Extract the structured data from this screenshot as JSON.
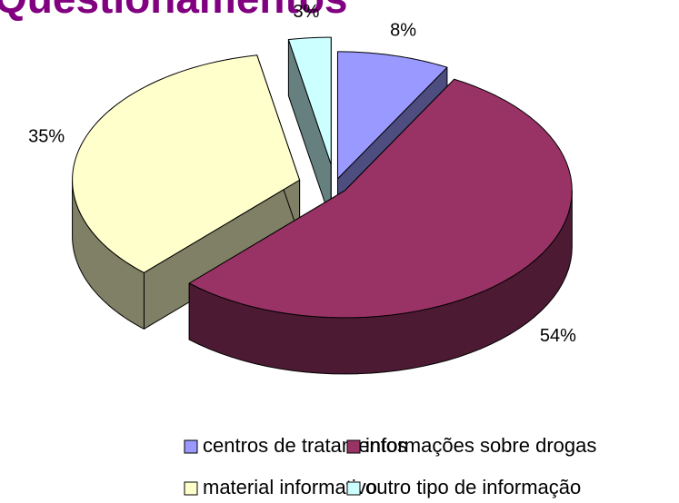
{
  "chart_data": {
    "type": "pie",
    "title": "Questionamentos",
    "categories": [
      "centros de tratamentos",
      "informações sobre drogas",
      "material informativo",
      "outro tipo de informação"
    ],
    "values": [
      8,
      54,
      35,
      3
    ],
    "value_labels": [
      "8%",
      "54%",
      "35%",
      "3%"
    ],
    "colors": [
      "#9999ff",
      "#993366",
      "#ffffcc",
      "#ccffff"
    ],
    "legend": "bottom"
  }
}
